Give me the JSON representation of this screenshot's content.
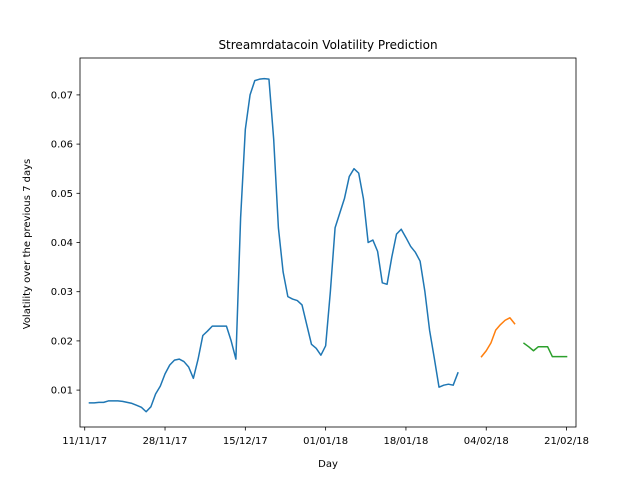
{
  "chart_data": {
    "type": "line",
    "title": "Streamrdatacoin Volatility Prediction",
    "xlabel": "Day",
    "ylabel": "Volatility over the previous 7 days",
    "xlim": [
      "2017-11-10",
      "2018-02-23"
    ],
    "ylim": [
      0.0025,
      0.0775
    ],
    "x_ticks": [
      "2017-11-11",
      "2017-11-28",
      "2017-12-15",
      "2018-01-01",
      "2018-01-18",
      "2018-02-04",
      "2018-02-21"
    ],
    "x_tick_labels": [
      "11/11/17",
      "28/11/17",
      "15/12/17",
      "01/01/18",
      "18/01/18",
      "04/02/18",
      "21/02/18"
    ],
    "y_ticks": [
      0.01,
      0.02,
      0.03,
      0.04,
      0.05,
      0.06,
      0.07
    ],
    "y_tick_labels": [
      "0.01",
      "0.02",
      "0.03",
      "0.04",
      "0.05",
      "0.06",
      "0.07"
    ],
    "grid": false,
    "series": [
      {
        "color": "#1f77b4",
        "x": [
          "2017-11-12",
          "2017-11-13",
          "2017-11-14",
          "2017-11-15",
          "2017-11-16",
          "2017-11-17",
          "2017-11-18",
          "2017-11-19",
          "2017-11-20",
          "2017-11-21",
          "2017-11-22",
          "2017-11-23",
          "2017-11-24",
          "2017-11-25",
          "2017-11-26",
          "2017-11-27",
          "2017-11-28",
          "2017-11-29",
          "2017-11-30",
          "2017-12-01",
          "2017-12-02",
          "2017-12-03",
          "2017-12-04",
          "2017-12-05",
          "2017-12-06",
          "2017-12-07",
          "2017-12-08",
          "2017-12-09",
          "2017-12-10",
          "2017-12-11",
          "2017-12-12",
          "2017-12-13",
          "2017-12-14",
          "2017-12-15",
          "2017-12-16",
          "2017-12-17",
          "2017-12-18",
          "2017-12-19",
          "2017-12-20",
          "2017-12-21",
          "2017-12-22",
          "2017-12-23",
          "2017-12-24",
          "2017-12-25",
          "2017-12-26",
          "2017-12-27",
          "2017-12-28",
          "2017-12-29",
          "2017-12-30",
          "2017-12-31",
          "2018-01-01",
          "2018-01-02",
          "2018-01-03",
          "2018-01-04",
          "2018-01-05",
          "2018-01-06",
          "2018-01-07",
          "2018-01-08",
          "2018-01-09",
          "2018-01-10",
          "2018-01-11",
          "2018-01-12",
          "2018-01-13",
          "2018-01-14",
          "2018-01-15",
          "2018-01-16",
          "2018-01-17",
          "2018-01-18",
          "2018-01-19",
          "2018-01-20",
          "2018-01-21",
          "2018-01-22",
          "2018-01-23",
          "2018-01-24",
          "2018-01-25",
          "2018-01-26",
          "2018-01-27",
          "2018-01-28",
          "2018-01-29",
          "2018-01-30",
          "2018-01-31"
        ],
        "y": [
          0.0074,
          0.0074,
          0.0075,
          0.0075,
          0.0078,
          0.0078,
          0.0078,
          0.0077,
          0.0075,
          0.0073,
          0.0069,
          0.0065,
          0.0056,
          0.0066,
          0.0092,
          0.0108,
          0.0133,
          0.0151,
          0.0161,
          0.0163,
          0.0158,
          0.0147,
          0.0124,
          0.0163,
          0.0211,
          0.022,
          0.023,
          0.023,
          0.023,
          0.023,
          0.02,
          0.0163,
          0.045,
          0.063,
          0.07,
          0.0729,
          0.0732,
          0.0733,
          0.0732,
          0.061,
          0.043,
          0.034,
          0.029,
          0.0285,
          0.0282,
          0.0273,
          0.0233,
          0.0193,
          0.0185,
          0.0171,
          0.019,
          0.03,
          0.043,
          0.046,
          0.049,
          0.0534,
          0.055,
          0.0541,
          0.0489,
          0.04,
          0.0405,
          0.0382,
          0.0318,
          0.0315,
          0.037,
          0.0417,
          0.0427,
          0.041,
          0.0392,
          0.038,
          0.0362,
          0.0301,
          0.0222,
          0.0165,
          0.0106,
          0.011,
          0.0112,
          0.011,
          0.0135,
          null,
          null
        ]
      },
      {
        "color": "#ff7f0e",
        "x": [
          "2018-02-03",
          "2018-02-04",
          "2018-02-05",
          "2018-02-06",
          "2018-02-07",
          "2018-02-08",
          "2018-02-09",
          "2018-02-10"
        ],
        "y": [
          0.0168,
          0.018,
          0.0196,
          0.0222,
          0.0233,
          0.0242,
          0.0247,
          0.0235
        ]
      },
      {
        "color": "#2ca02c",
        "x": [
          "2018-02-12",
          "2018-02-13",
          "2018-02-14",
          "2018-02-15",
          "2018-02-16",
          "2018-02-17",
          "2018-02-18",
          "2018-02-19",
          "2018-02-20",
          "2018-02-21"
        ],
        "y": [
          0.0195,
          0.0188,
          0.018,
          0.0188,
          0.0188,
          0.0188,
          0.0168,
          0.0168,
          0.0168,
          0.0168
        ]
      }
    ]
  }
}
